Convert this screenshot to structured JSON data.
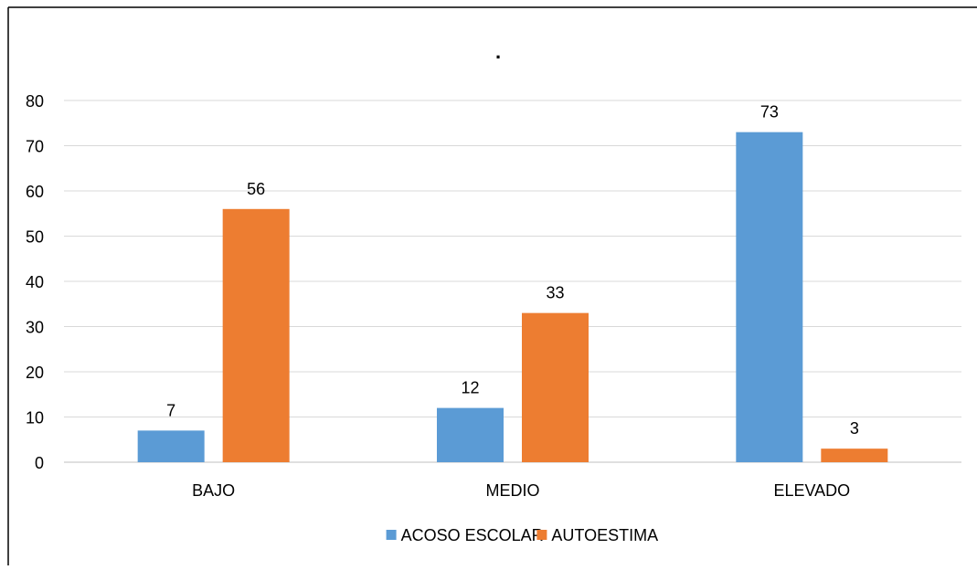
{
  "chart_data": {
    "type": "bar",
    "title": ".",
    "categories": [
      "BAJO",
      "MEDIO",
      "ELEVADO"
    ],
    "series": [
      {
        "name": "ACOSO ESCOLAR",
        "values": [
          7,
          12,
          73
        ],
        "color": "#5B9BD5"
      },
      {
        "name": "AUTOESTIMA",
        "values": [
          56,
          33,
          3
        ],
        "color": "#ED7D31"
      }
    ],
    "ylim": [
      0,
      80
    ],
    "yticks": [
      0,
      10,
      20,
      30,
      40,
      50,
      60,
      70,
      80
    ],
    "grid": true,
    "legend": "bottom-center",
    "data_labels": true
  }
}
